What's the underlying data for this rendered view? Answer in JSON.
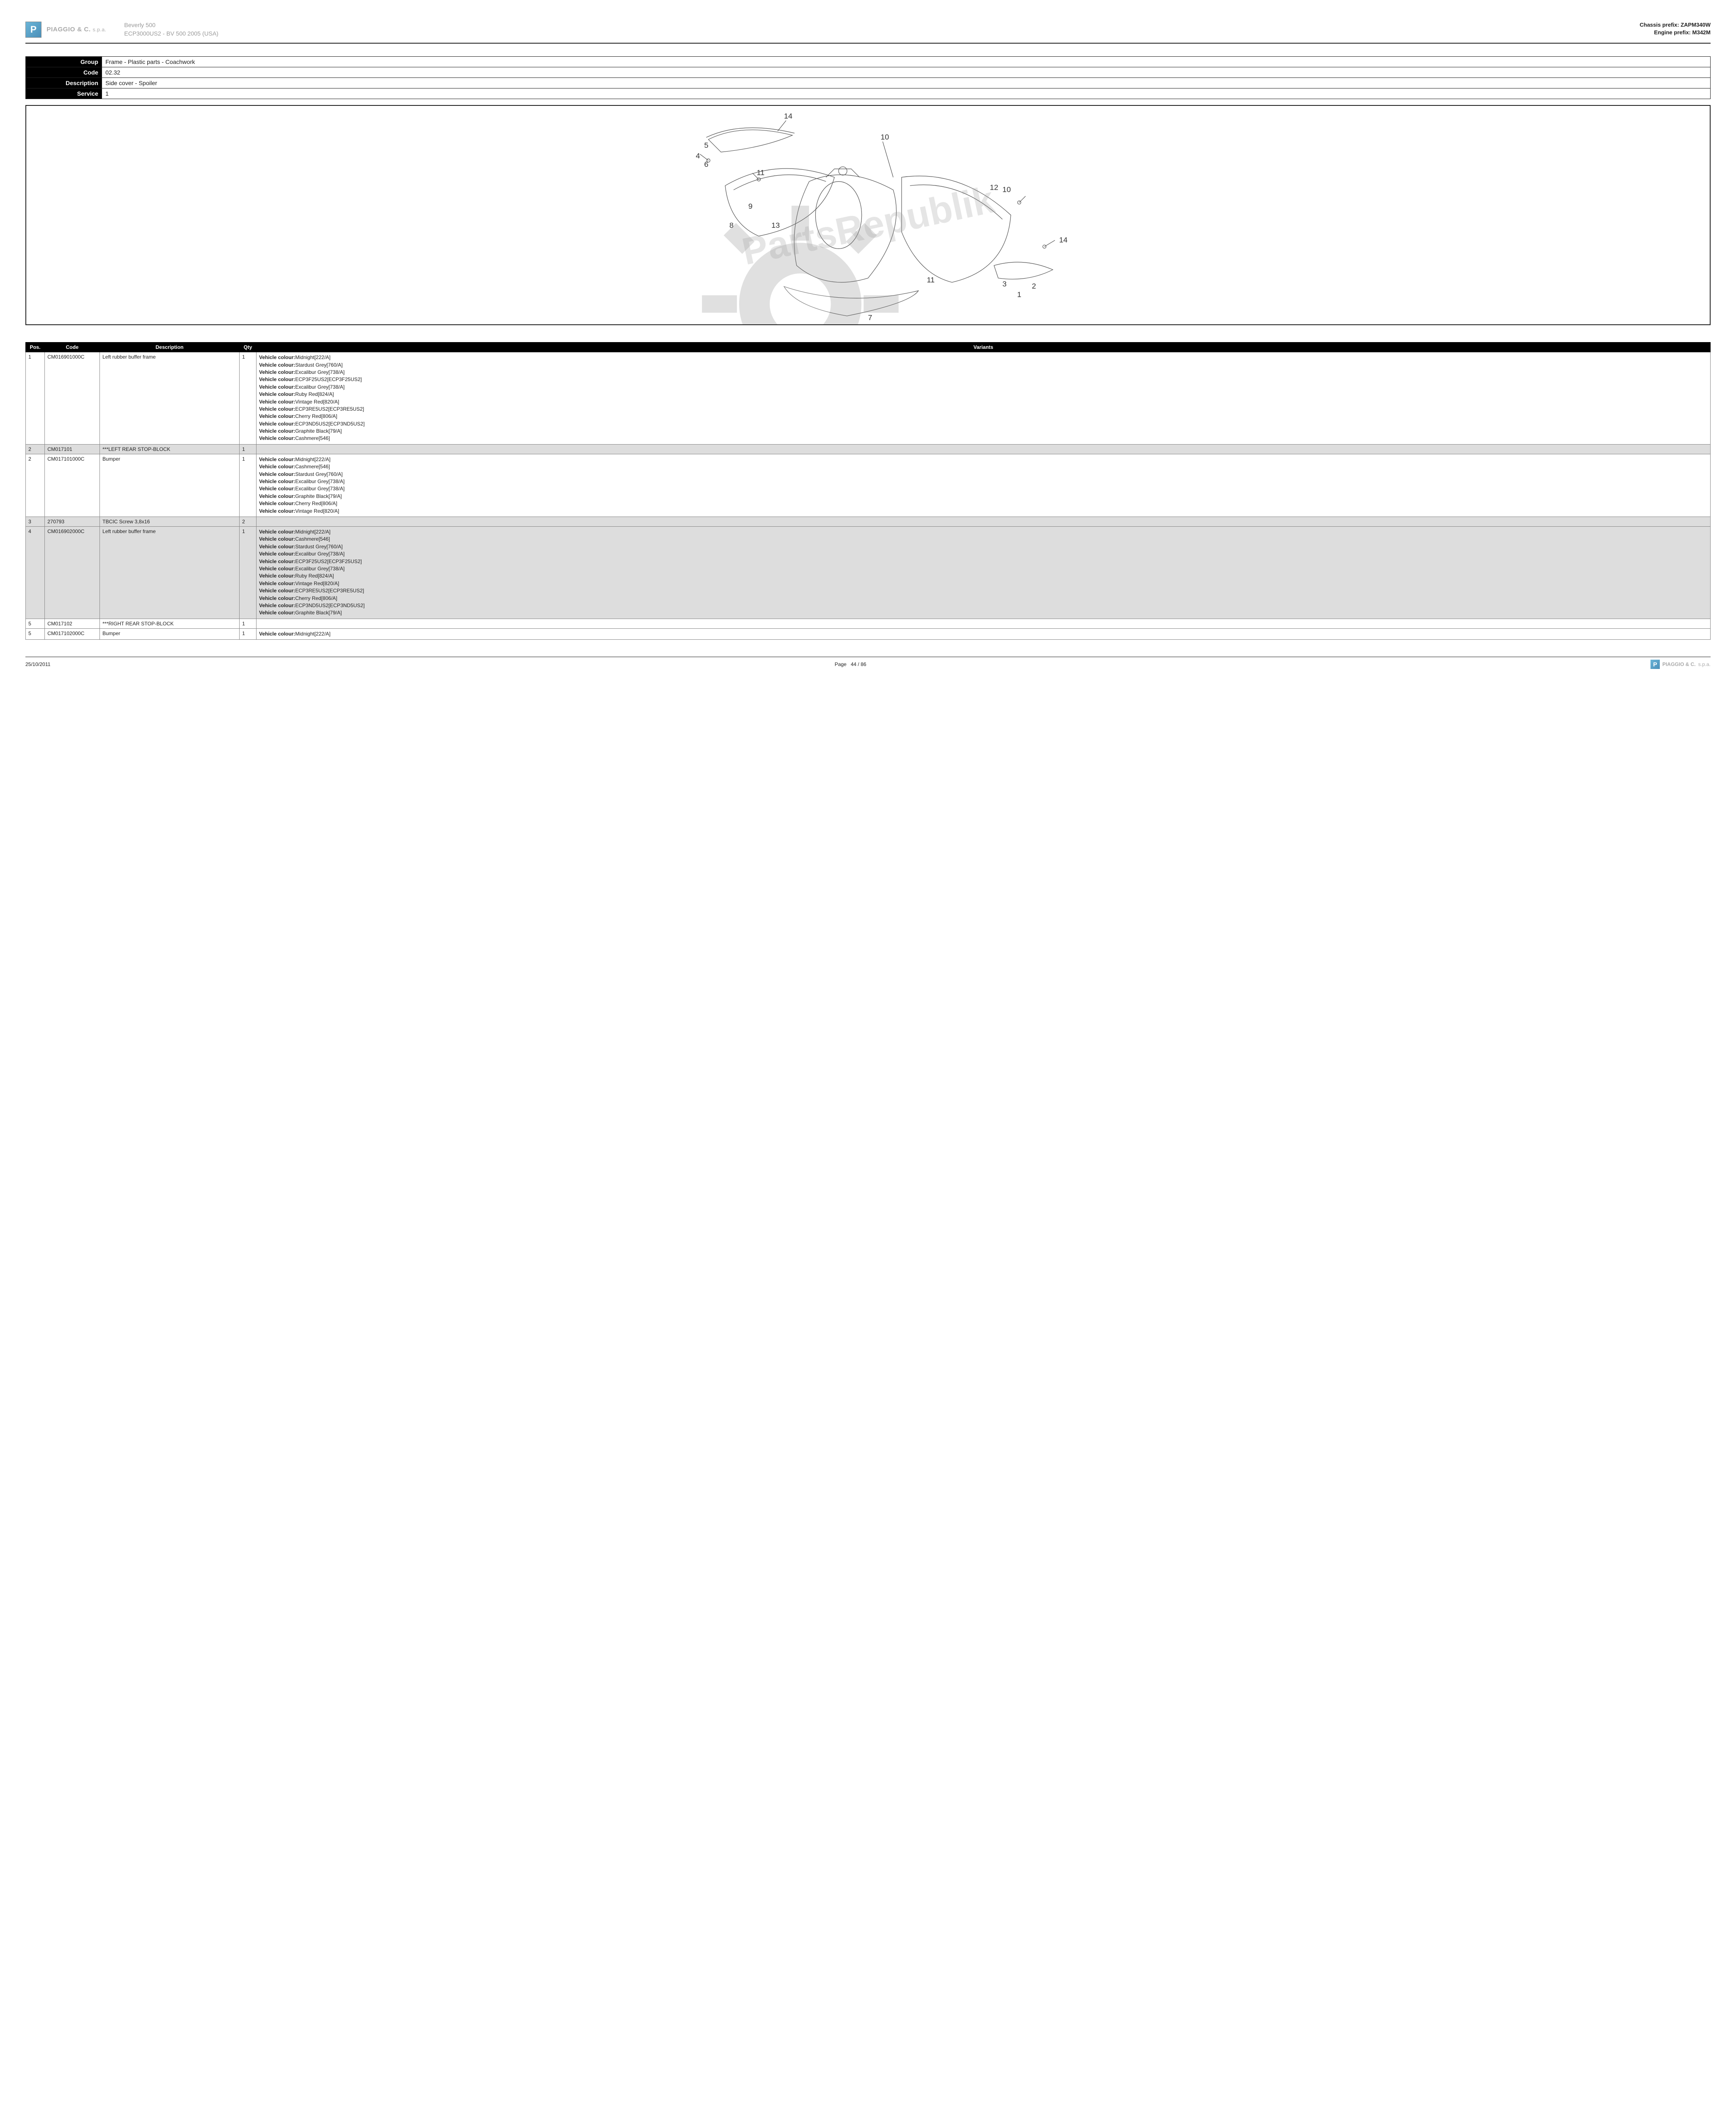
{
  "header": {
    "brand": "PIAGGIO & C.",
    "brand_suffix": "s.p.a.",
    "logo_letter": "P",
    "model_name": "Beverly 500",
    "model_code": "ECP3000US2 - BV 500 2005 (USA)",
    "chassis_prefix_label": "Chassis prefix:",
    "chassis_prefix": "ZAPM340W",
    "engine_prefix_label": "Engine prefix:",
    "engine_prefix": "M342M"
  },
  "info": {
    "group_label": "Group",
    "group": "Frame - Plastic parts - Coachwork",
    "code_label": "Code",
    "code": "02.32",
    "description_label": "Description",
    "description": "Side cover - Spoiler",
    "service_label": "Service",
    "service": "1"
  },
  "diagram": {
    "callouts": [
      "14",
      "5",
      "4",
      "6",
      "11",
      "10",
      "9",
      "8",
      "13",
      "12",
      "10",
      "11",
      "14",
      "3",
      "2",
      "1",
      "7"
    ],
    "watermark_text": "PartsRepublik"
  },
  "parts_table": {
    "headers": {
      "pos": "Pos.",
      "code": "Code",
      "desc": "Description",
      "qty": "Qty",
      "variants": "Variants"
    },
    "rows": [
      {
        "pos": "1",
        "code": "CM016901000C",
        "desc": "Left rubber buffer frame",
        "qty": "1",
        "alt": false,
        "variants": [
          {
            "k": "Vehicle colour:",
            "v": "Midnight[222/A]"
          },
          {
            "k": "Vehicle colour:",
            "v": "Stardust Grey[760/A]"
          },
          {
            "k": "Vehicle colour:",
            "v": "Excalibur Grey[738/A]"
          },
          {
            "k": "Vehicle colour:",
            "v": "ECP3F25US2[ECP3F25US2]"
          },
          {
            "k": "Vehicle colour:",
            "v": "Excalibur Grey[738/A]"
          },
          {
            "k": "Vehicle colour:",
            "v": "Ruby Red[824/A]"
          },
          {
            "k": "Vehicle colour:",
            "v": "Vintage Red[820/A]"
          },
          {
            "k": "Vehicle colour:",
            "v": "ECP3RE5US2[ECP3RE5US2]"
          },
          {
            "k": "Vehicle colour:",
            "v": "Cherry Red[806/A]"
          },
          {
            "k": "Vehicle colour:",
            "v": "ECP3ND5US2[ECP3ND5US2]"
          },
          {
            "k": "Vehicle colour:",
            "v": "Graphite Black[79/A]"
          },
          {
            "k": "Vehicle colour:",
            "v": "Cashmere[546]"
          }
        ]
      },
      {
        "pos": "2",
        "code": "CM017101",
        "desc": "***LEFT REAR STOP-BLOCK",
        "qty": "1",
        "alt": true,
        "variants": []
      },
      {
        "pos": "2",
        "code": "CM017101000C",
        "desc": "Bumper",
        "qty": "1",
        "alt": false,
        "variants": [
          {
            "k": "Vehicle colour:",
            "v": "Midnight[222/A]"
          },
          {
            "k": "Vehicle colour:",
            "v": "Cashmere[546]"
          },
          {
            "k": "Vehicle colour:",
            "v": "Stardust Grey[760/A]"
          },
          {
            "k": "Vehicle colour:",
            "v": "Excalibur Grey[738/A]"
          },
          {
            "k": "Vehicle colour:",
            "v": "Excalibur Grey[738/A]"
          },
          {
            "k": "Vehicle colour:",
            "v": "Graphite Black[79/A]"
          },
          {
            "k": "Vehicle colour:",
            "v": "Cherry Red[806/A]"
          },
          {
            "k": "Vehicle colour:",
            "v": "Vintage Red[820/A]"
          }
        ]
      },
      {
        "pos": "3",
        "code": "270793",
        "desc": "TBCIC Screw 3,8x16",
        "qty": "2",
        "alt": true,
        "variants": []
      },
      {
        "pos": "4",
        "code": "CM016902000C",
        "desc": "Left rubber buffer frame",
        "qty": "1",
        "alt": true,
        "variants": [
          {
            "k": "Vehicle colour:",
            "v": "Midnight[222/A]"
          },
          {
            "k": "Vehicle colour:",
            "v": "Cashmere[546]"
          },
          {
            "k": "Vehicle colour:",
            "v": "Stardust Grey[760/A]"
          },
          {
            "k": "Vehicle colour:",
            "v": "Excalibur Grey[738/A]"
          },
          {
            "k": "Vehicle colour:",
            "v": "ECP3F25US2[ECP3F25US2]"
          },
          {
            "k": "Vehicle colour:",
            "v": "Excalibur Grey[738/A]"
          },
          {
            "k": "Vehicle colour:",
            "v": "Ruby Red[824/A]"
          },
          {
            "k": "Vehicle colour:",
            "v": "Vintage Red[820/A]"
          },
          {
            "k": "Vehicle colour:",
            "v": "ECP3RE5US2[ECP3RE5US2]"
          },
          {
            "k": "Vehicle colour:",
            "v": "Cherry Red[806/A]"
          },
          {
            "k": "Vehicle colour:",
            "v": "ECP3ND5US2[ECP3ND5US2]"
          },
          {
            "k": "Vehicle colour:",
            "v": "Graphite Black[79/A]"
          }
        ]
      },
      {
        "pos": "5",
        "code": "CM017102",
        "desc": "***RIGHT REAR STOP-BLOCK",
        "qty": "1",
        "alt": false,
        "variants": []
      },
      {
        "pos": "5",
        "code": "CM017102000C",
        "desc": "Bumper",
        "qty": "1",
        "alt": false,
        "variants": [
          {
            "k": "Vehicle colour:",
            "v": "Midnight[222/A]"
          }
        ]
      }
    ]
  },
  "footer": {
    "date": "25/10/2011",
    "page_label": "Page",
    "page": "44 / 86",
    "brand": "PIAGGIO & C.",
    "brand_suffix": "s.p.a.",
    "logo_letter": "P"
  }
}
